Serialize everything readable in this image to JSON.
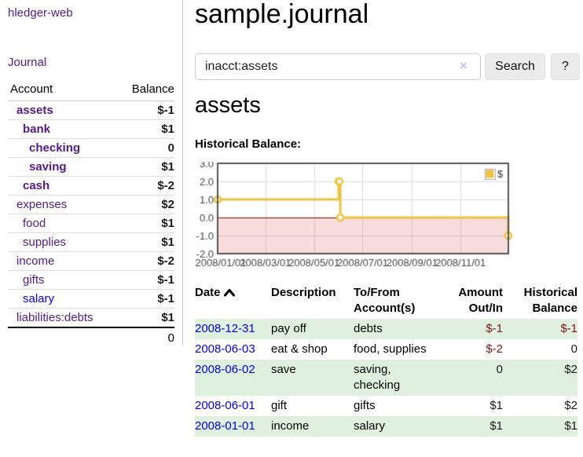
{
  "colors": {
    "visited_link": "#551a8b",
    "unvisited_link": "#0000ee",
    "negative_strong": "#7f1414",
    "negative_soft": "#b35f5f",
    "row_shade_green": "#dff0df",
    "chart_line": "#edc240",
    "chart_zero_line": "#8b0000",
    "chart_negative_fill": "#fbdcdc"
  },
  "sidebar": {
    "brand": "hledger-web",
    "journal_link": "Journal",
    "accounts_table": {
      "headers": {
        "account": "Account",
        "balance": "Balance"
      },
      "rows": [
        {
          "name": "assets",
          "depth": 1,
          "bold": true,
          "balance": "$-1",
          "balance_style": "neg-strong"
        },
        {
          "name": "bank",
          "depth": 2,
          "bold": true,
          "balance": "$1",
          "balance_style": "pos"
        },
        {
          "name": "checking",
          "depth": 3,
          "bold": true,
          "balance": "0",
          "balance_style": "pos"
        },
        {
          "name": "saving",
          "depth": 3,
          "bold": true,
          "balance": "$1",
          "balance_style": "pos"
        },
        {
          "name": "cash",
          "depth": 2,
          "bold": true,
          "balance": "$-2",
          "balance_style": "neg-strong"
        },
        {
          "name": "expenses",
          "depth": 1,
          "bold": false,
          "balance": "$2",
          "balance_style": "pos"
        },
        {
          "name": "food",
          "depth": 2,
          "bold": false,
          "balance": "$1",
          "balance_style": "pos"
        },
        {
          "name": "supplies",
          "depth": 2,
          "bold": false,
          "balance": "$1",
          "balance_style": "pos"
        },
        {
          "name": "income",
          "depth": 1,
          "bold": false,
          "balance": "$-2",
          "balance_style": "neg-soft"
        },
        {
          "name": "gifts",
          "depth": 2,
          "bold": false,
          "balance": "$-1",
          "balance_style": "neg-soft"
        },
        {
          "name": "salary",
          "depth": 2,
          "bold": false,
          "link_style": "unvisited",
          "balance": "$-1",
          "balance_style": "neg-soft"
        },
        {
          "name": "liabilities:debts",
          "depth": 1,
          "bold": false,
          "balance": "$1",
          "balance_style": "pos"
        }
      ],
      "total": "0"
    }
  },
  "header": {
    "title": "sample.journal"
  },
  "search": {
    "value": "inacct:assets",
    "clear_icon": "×",
    "button_label": "Search",
    "help_label": "?"
  },
  "account_page": {
    "heading": "assets",
    "chart_label": "Historical Balance:"
  },
  "chart_data": {
    "type": "line",
    "step": true,
    "title": "Historical Balance:",
    "series": [
      {
        "name": "$",
        "color": "#edc240",
        "points": [
          [
            "2008-01-01",
            1
          ],
          [
            "2008-06-01",
            2
          ],
          [
            "2008-06-02",
            2
          ],
          [
            "2008-06-03",
            0
          ],
          [
            "2008-12-31",
            -1
          ]
        ]
      }
    ],
    "x_range": [
      "2008-01-01",
      "2008-12-31"
    ],
    "ylim": [
      -2,
      3
    ],
    "yticks": [
      "3.0",
      "2.0",
      "1.0",
      "0.0",
      "-1.0",
      "-2.0"
    ],
    "xticks": [
      "2008/01/01",
      "2008/03/01",
      "2008/05/01",
      "2008/07/01",
      "2008/09/01",
      "2008/11/01"
    ],
    "legend": {
      "label": "$",
      "position": "top-right"
    },
    "grid": true,
    "zero_line_color": "#8b0000",
    "negative_region_fill": "rgba(220,40,40,0.16)"
  },
  "register_table": {
    "headers": {
      "date": "Date",
      "description": "Description",
      "accounts": "To/From Account(s)",
      "amount": "Amount Out/In",
      "balance": "Historical Balance"
    },
    "rows": [
      {
        "date": "2008-12-31",
        "description": "pay off",
        "accounts": "debts",
        "amount": "$-1",
        "amount_neg": true,
        "balance": "$-1",
        "balance_neg": true,
        "shade": true
      },
      {
        "date": "2008-06-03",
        "description": "eat & shop",
        "accounts": "food, supplies",
        "amount": "$-2",
        "amount_neg": true,
        "balance": "0",
        "balance_neg": false,
        "shade": false
      },
      {
        "date": "2008-06-02",
        "description": "save",
        "accounts": "saving,\nchecking",
        "amount": "0",
        "amount_neg": false,
        "balance": "$2",
        "balance_neg": false,
        "shade": true
      },
      {
        "date": "2008-06-01",
        "description": "gift",
        "accounts": "gifts",
        "amount": "$1",
        "amount_neg": false,
        "balance": "$2",
        "balance_neg": false,
        "shade": false
      },
      {
        "date": "2008-01-01",
        "description": "income",
        "accounts": "salary",
        "amount": "$1",
        "amount_neg": false,
        "balance": "$1",
        "balance_neg": false,
        "shade": true
      }
    ]
  }
}
